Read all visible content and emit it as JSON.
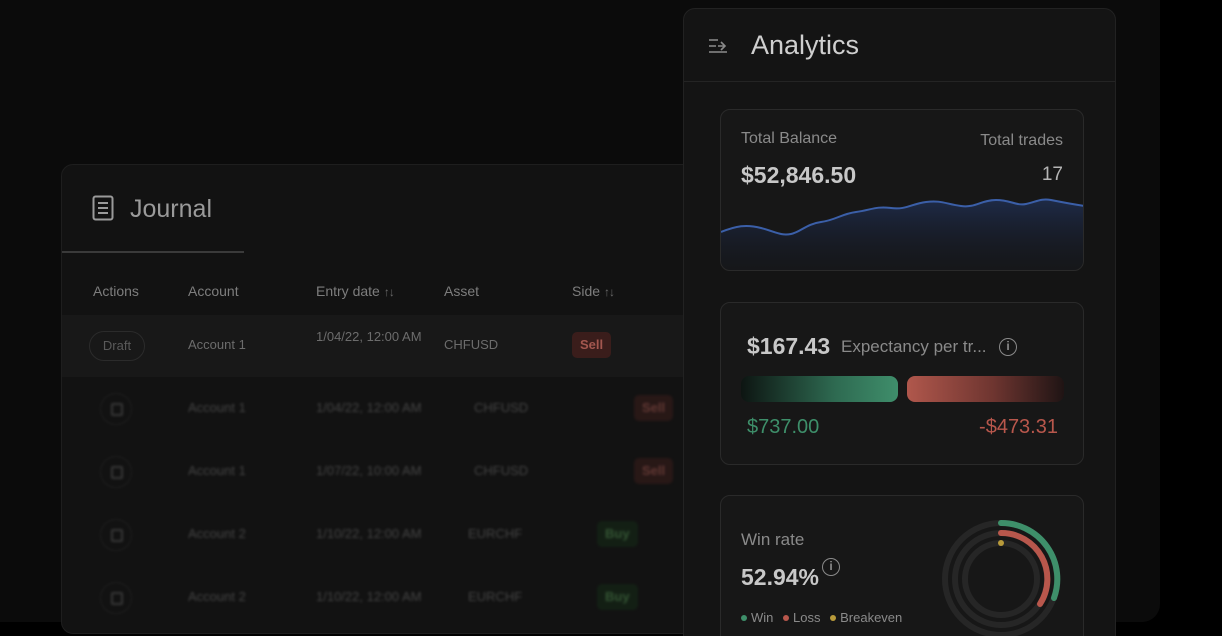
{
  "journal": {
    "title": "Journal",
    "columns": [
      "Actions",
      "Account",
      "Entry date",
      "Asset",
      "Side"
    ],
    "sort_glyph": "↑↓",
    "rows": [
      {
        "action": "Draft",
        "account": "Account 1",
        "entry_date": "1/04/22, 12:00 AM",
        "asset": "CHFUSD",
        "side": "Sell"
      },
      {
        "account": "Account 1",
        "entry_date": "1/04/22, 12:00 AM",
        "asset": "CHFUSD",
        "side": "Sell"
      },
      {
        "account": "Account 1",
        "entry_date": "1/07/22, 10:00 AM",
        "asset": "CHFUSD",
        "side": "Sell"
      },
      {
        "account": "Account 2",
        "entry_date": "1/10/22, 12:00 AM",
        "asset": "EURCHF",
        "side": "Buy"
      },
      {
        "account": "Account 2",
        "entry_date": "1/10/22, 12:00 AM",
        "asset": "EURCHF",
        "side": "Buy"
      }
    ]
  },
  "analytics": {
    "title": "Analytics",
    "balance": {
      "label": "Total Balance",
      "value": "$52,846.50",
      "trades_label": "Total trades",
      "trades_value": "17"
    },
    "expectancy": {
      "value": "$167.43",
      "label": "Expectancy per tr...",
      "win_value": "$737.00",
      "loss_value": "-$473.31"
    },
    "winrate": {
      "label": "Win rate",
      "value": "52.94%",
      "legend": [
        "Win",
        "Loss",
        "Breakeven"
      ]
    },
    "info_glyph": "i",
    "colors": {
      "win": "#3e8f6a",
      "loss": "#b8574c",
      "breakeven": "#b89a3a",
      "spark": "#3b5fa8"
    }
  }
}
